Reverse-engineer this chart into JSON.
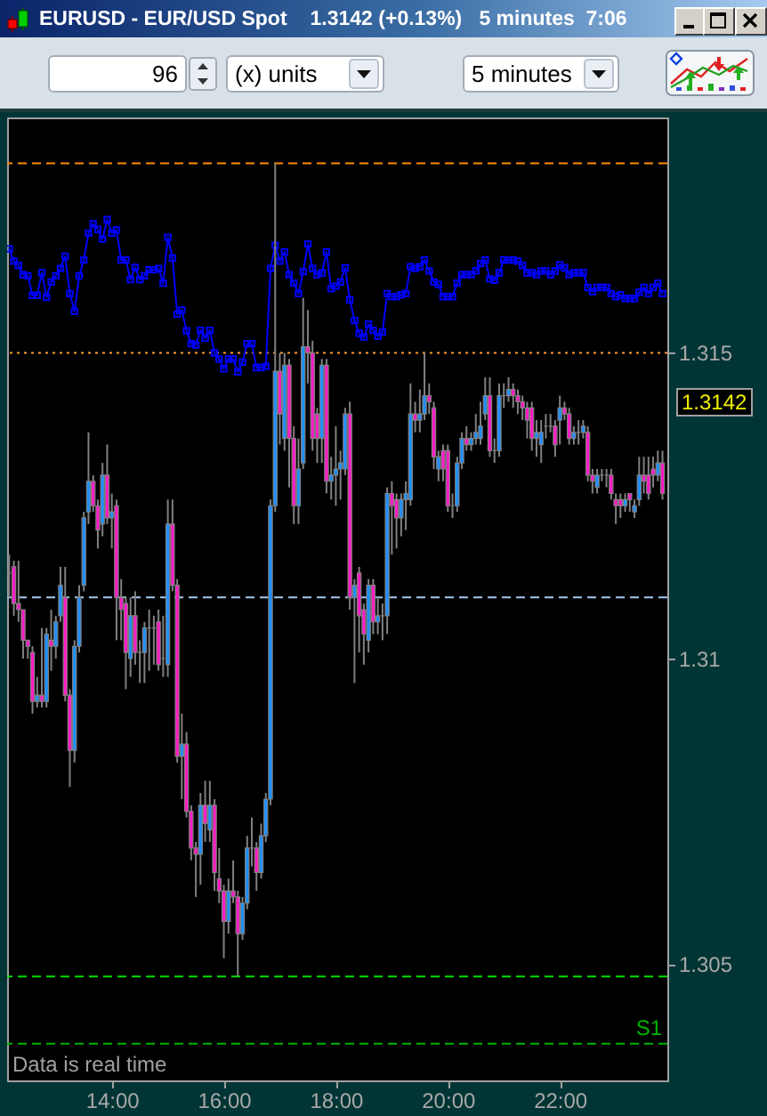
{
  "chart_data": {
    "type": "candlestick",
    "title": "EURUSD - EUR/USD Spot",
    "subtitle": "1.3142 (+0.13%)   5 minutes  7:06",
    "xlim": [
      12.13,
      23.92
    ],
    "xticks": [
      {
        "value": 14,
        "label": "14:00"
      },
      {
        "value": 16,
        "label": "16:00"
      },
      {
        "value": 18,
        "label": "18:00"
      },
      {
        "value": 20,
        "label": "20:00"
      },
      {
        "value": 22,
        "label": "22:00"
      }
    ],
    "ylim": [
      1.3031,
      1.31885
    ],
    "yticks": [
      1.305,
      1.31,
      1.315
    ],
    "x": [
      12.1667,
      12.25,
      12.3333,
      12.4167,
      12.5,
      12.5833,
      12.6667,
      12.75,
      12.8333,
      12.9167,
      13,
      13.0833,
      13.1667,
      13.25,
      13.3333,
      13.4167,
      13.5,
      13.5833,
      13.6667,
      13.75,
      13.8333,
      13.9167,
      14,
      14.0833,
      14.1667,
      14.25,
      14.3333,
      14.4167,
      14.5,
      14.5833,
      14.6667,
      14.75,
      14.8333,
      14.9167,
      15,
      15.0833,
      15.1667,
      15.25,
      15.3333,
      15.4167,
      15.5,
      15.5833,
      15.6667,
      15.75,
      15.8333,
      15.9167,
      16,
      16.0833,
      16.1667,
      16.25,
      16.3333,
      16.4167,
      16.5,
      16.5833,
      16.6667,
      16.75,
      16.8333,
      16.9167,
      17,
      17.0833,
      17.1667,
      17.25,
      17.3333,
      17.4167,
      17.5,
      17.5833,
      17.6667,
      17.75,
      17.8333,
      17.9167,
      18,
      18.0833,
      18.1667,
      18.25,
      18.3333,
      18.4167,
      18.5,
      18.5833,
      18.6667,
      18.75,
      18.8333,
      18.9167,
      19,
      19.0833,
      19.1667,
      19.25,
      19.3333,
      19.4167,
      19.5,
      19.5833,
      19.6667,
      19.75,
      19.8333,
      19.9167,
      20,
      20.0833,
      20.1667,
      20.25,
      20.3333,
      20.4167,
      20.5,
      20.5833,
      20.6667,
      20.75,
      20.8333,
      20.9167,
      21,
      21.0833,
      21.1667,
      21.25,
      21.3333,
      21.4167,
      21.5,
      21.5833,
      21.6667,
      21.75,
      21.8333,
      21.9167,
      22,
      22.0833,
      22.1667,
      22.25,
      22.3333,
      22.4167,
      22.5,
      22.5833,
      22.6667,
      22.75,
      22.8333,
      22.9167,
      23,
      23.0833,
      23.1667,
      23.25,
      23.3333,
      23.4167,
      23.5,
      23.5833,
      23.6667,
      23.75,
      23.8333
    ],
    "ohlc": [
      [
        1.3114,
        1.3117,
        1.311,
        1.3114
      ],
      [
        1.3115,
        1.3116,
        1.3107,
        1.3109
      ],
      [
        1.3109,
        1.3116,
        1.3106,
        1.3108
      ],
      [
        1.3108,
        1.3108,
        1.31,
        1.3103
      ],
      [
        1.3103,
        1.3103,
        1.31,
        1.3102
      ],
      [
        1.3101,
        1.3102,
        1.3091,
        1.3093
      ],
      [
        1.3093,
        1.3097,
        1.3092,
        1.3094
      ],
      [
        1.3094,
        1.3105,
        1.3092,
        1.3093
      ],
      [
        1.3093,
        1.3105,
        1.3092,
        1.3104
      ],
      [
        1.3103,
        1.3108,
        1.3098,
        1.3102
      ],
      [
        1.3102,
        1.3107,
        1.31,
        1.3106
      ],
      [
        1.3107,
        1.3115,
        1.3106,
        1.3112
      ],
      [
        1.311,
        1.3115,
        1.3093,
        1.3094
      ],
      [
        1.3094,
        1.3095,
        1.3079,
        1.3085
      ],
      [
        1.3085,
        1.3103,
        1.3083,
        1.3102
      ],
      [
        1.3102,
        1.3112,
        1.3101,
        1.311
      ],
      [
        1.3112,
        1.3124,
        1.3111,
        1.3123
      ],
      [
        1.3124,
        1.3137,
        1.3122,
        1.3129
      ],
      [
        1.3129,
        1.313,
        1.3124,
        1.3125
      ],
      [
        1.3125,
        1.3126,
        1.3118,
        1.3121
      ],
      [
        1.3122,
        1.3132,
        1.312,
        1.313
      ],
      [
        1.313,
        1.3135,
        1.3122,
        1.3123
      ],
      [
        1.3123,
        1.3127,
        1.3118,
        1.3124
      ],
      [
        1.3125,
        1.3126,
        1.3103,
        1.311
      ],
      [
        1.311,
        1.3113,
        1.3103,
        1.3108
      ],
      [
        1.3109,
        1.311,
        1.3095,
        1.3101
      ],
      [
        1.31,
        1.311,
        1.3097,
        1.3107
      ],
      [
        1.3107,
        1.3111,
        1.3099,
        1.3101
      ],
      [
        1.3101,
        1.3103,
        1.3096,
        1.3101
      ],
      [
        1.3101,
        1.3106,
        1.3096,
        1.3105
      ],
      [
        1.3105,
        1.3108,
        1.3098,
        1.3105
      ],
      [
        1.3105,
        1.3107,
        1.3099,
        1.3105
      ],
      [
        1.3106,
        1.3108,
        1.3098,
        1.3099
      ],
      [
        1.31,
        1.3107,
        1.3097,
        1.31
      ],
      [
        1.3099,
        1.3126,
        1.3097,
        1.3122
      ],
      [
        1.3122,
        1.3126,
        1.3111,
        1.3112
      ],
      [
        1.3112,
        1.3113,
        1.3083,
        1.3084
      ],
      [
        1.3084,
        1.3091,
        1.3077,
        1.3086
      ],
      [
        1.3086,
        1.3088,
        1.3074,
        1.3075
      ],
      [
        1.3075,
        1.3076,
        1.3067,
        1.3069
      ],
      [
        1.3069,
        1.307,
        1.3061,
        1.3068
      ],
      [
        1.3068,
        1.3078,
        1.3063,
        1.3076
      ],
      [
        1.3076,
        1.308,
        1.307,
        1.3073
      ],
      [
        1.3072,
        1.308,
        1.307,
        1.3076
      ],
      [
        1.3076,
        1.3077,
        1.3062,
        1.3065
      ],
      [
        1.3064,
        1.3069,
        1.306,
        1.3062
      ],
      [
        1.3062,
        1.3063,
        1.3051,
        1.3057
      ],
      [
        1.3057,
        1.3064,
        1.3055,
        1.3062
      ],
      [
        1.3062,
        1.3067,
        1.306,
        1.3061
      ],
      [
        1.3061,
        1.3062,
        1.3048,
        1.3055
      ],
      [
        1.3055,
        1.3061,
        1.3054,
        1.306
      ],
      [
        1.306,
        1.3071,
        1.3059,
        1.3069
      ],
      [
        1.3069,
        1.3074,
        1.3066,
        1.3069
      ],
      [
        1.3069,
        1.307,
        1.3062,
        1.3065
      ],
      [
        1.3065,
        1.3073,
        1.3064,
        1.3071
      ],
      [
        1.3071,
        1.3078,
        1.307,
        1.3077
      ],
      [
        1.3077,
        1.3126,
        1.3076,
        1.3125
      ],
      [
        1.3125,
        1.3181,
        1.3124,
        1.3147
      ],
      [
        1.3147,
        1.315,
        1.3135,
        1.314
      ],
      [
        1.3136,
        1.315,
        1.3134,
        1.3148
      ],
      [
        1.3148,
        1.3149,
        1.3128,
        1.3136
      ],
      [
        1.3136,
        1.3138,
        1.3122,
        1.3125
      ],
      [
        1.3125,
        1.3136,
        1.3122,
        1.3131
      ],
      [
        1.3132,
        1.3159,
        1.3131,
        1.3151
      ],
      [
        1.3151,
        1.3157,
        1.3145,
        1.315
      ],
      [
        1.315,
        1.3152,
        1.3134,
        1.3136
      ],
      [
        1.314,
        1.3141,
        1.3132,
        1.3136
      ],
      [
        1.3136,
        1.3149,
        1.3132,
        1.3148
      ],
      [
        1.3148,
        1.3149,
        1.3127,
        1.3129
      ],
      [
        1.3129,
        1.3133,
        1.3126,
        1.313
      ],
      [
        1.313,
        1.3138,
        1.3125,
        1.3131
      ],
      [
        1.3131,
        1.3134,
        1.3126,
        1.3132
      ],
      [
        1.3131,
        1.3141,
        1.313,
        1.314
      ],
      [
        1.314,
        1.3142,
        1.3108,
        1.311
      ],
      [
        1.311,
        1.3113,
        1.3096,
        1.3112
      ],
      [
        1.3114,
        1.3115,
        1.3101,
        1.3107
      ],
      [
        1.3108,
        1.3109,
        1.3099,
        1.3104
      ],
      [
        1.3103,
        1.3113,
        1.3101,
        1.3112
      ],
      [
        1.3112,
        1.3113,
        1.3104,
        1.3106
      ],
      [
        1.3106,
        1.311,
        1.3104,
        1.3107
      ],
      [
        1.3107,
        1.3109,
        1.3103,
        1.3107
      ],
      [
        1.3107,
        1.3128,
        1.3104,
        1.3127
      ],
      [
        1.3127,
        1.3129,
        1.3117,
        1.3125
      ],
      [
        1.3126,
        1.3127,
        1.3118,
        1.3123
      ],
      [
        1.3123,
        1.3127,
        1.312,
        1.3126
      ],
      [
        1.3126,
        1.3129,
        1.3121,
        1.3127
      ],
      [
        1.3126,
        1.3145,
        1.3125,
        1.314
      ],
      [
        1.314,
        1.3142,
        1.3137,
        1.3139
      ],
      [
        1.3139,
        1.3144,
        1.3137,
        1.314
      ],
      [
        1.314,
        1.315,
        1.3139,
        1.3143
      ],
      [
        1.3143,
        1.3145,
        1.314,
        1.3142
      ],
      [
        1.3141,
        1.3142,
        1.3131,
        1.3133
      ],
      [
        1.3131,
        1.3134,
        1.3129,
        1.3133
      ],
      [
        1.3134,
        1.3135,
        1.3129,
        1.3131
      ],
      [
        1.3134,
        1.3135,
        1.3124,
        1.3125
      ],
      [
        1.3125,
        1.3127,
        1.3123,
        1.3125
      ],
      [
        1.3125,
        1.3133,
        1.3124,
        1.3132
      ],
      [
        1.3132,
        1.3137,
        1.3131,
        1.3136
      ],
      [
        1.3136,
        1.3138,
        1.3134,
        1.3135
      ],
      [
        1.3135,
        1.3137,
        1.3134,
        1.3136
      ],
      [
        1.3136,
        1.314,
        1.3135,
        1.3137
      ],
      [
        1.3136,
        1.3142,
        1.3135,
        1.3138
      ],
      [
        1.314,
        1.3146,
        1.3139,
        1.3143
      ],
      [
        1.3143,
        1.3146,
        1.3133,
        1.3134
      ],
      [
        1.3134,
        1.3136,
        1.3132,
        1.3134
      ],
      [
        1.3134,
        1.3145,
        1.3133,
        1.3143
      ],
      [
        1.3143,
        1.3145,
        1.3141,
        1.3143
      ],
      [
        1.3143,
        1.3146,
        1.3142,
        1.3144
      ],
      [
        1.3144,
        1.3145,
        1.3141,
        1.3143
      ],
      [
        1.3143,
        1.3144,
        1.314,
        1.3142
      ],
      [
        1.3142,
        1.3143,
        1.3139,
        1.3141
      ],
      [
        1.3141,
        1.3142,
        1.3136,
        1.3139
      ],
      [
        1.3141,
        1.3142,
        1.3134,
        1.3136
      ],
      [
        1.3136,
        1.3139,
        1.3133,
        1.3137
      ],
      [
        1.3135,
        1.3139,
        1.3132,
        1.3137
      ],
      [
        1.3138,
        1.314,
        1.3136,
        1.3138
      ],
      [
        1.3138,
        1.314,
        1.3137,
        1.3138
      ],
      [
        1.3138,
        1.3139,
        1.3133,
        1.3135
      ],
      [
        1.3139,
        1.3143,
        1.3135,
        1.3141
      ],
      [
        1.3141,
        1.3142,
        1.3139,
        1.314
      ],
      [
        1.314,
        1.3141,
        1.3135,
        1.3136
      ],
      [
        1.3136,
        1.3138,
        1.3135,
        1.3137
      ],
      [
        1.3137,
        1.3139,
        1.3135,
        1.3137
      ],
      [
        1.3137,
        1.3139,
        1.3136,
        1.3138
      ],
      [
        1.3137,
        1.3138,
        1.3129,
        1.313
      ],
      [
        1.313,
        1.3131,
        1.3127,
        1.3129
      ],
      [
        1.3128,
        1.3131,
        1.3127,
        1.313
      ],
      [
        1.313,
        1.3131,
        1.3129,
        1.313
      ],
      [
        1.313,
        1.3131,
        1.3128,
        1.313
      ],
      [
        1.313,
        1.3131,
        1.3126,
        1.3127
      ],
      [
        1.3126,
        1.3127,
        1.3122,
        1.3125
      ],
      [
        1.3126,
        1.3127,
        1.3123,
        1.3125
      ],
      [
        1.3125,
        1.3127,
        1.3124,
        1.3126
      ],
      [
        1.3127,
        1.3127,
        1.3124,
        1.3126
      ],
      [
        1.3124,
        1.3126,
        1.3123,
        1.3125
      ],
      [
        1.3126,
        1.3133,
        1.3125,
        1.313
      ],
      [
        1.313,
        1.3133,
        1.3127,
        1.3129
      ],
      [
        1.313,
        1.3133,
        1.3126,
        1.3127
      ],
      [
        1.3131,
        1.3133,
        1.3128,
        1.313
      ],
      [
        1.313,
        1.3134,
        1.3129,
        1.3132
      ],
      [
        1.3132,
        1.3134,
        1.3126,
        1.3127
      ]
    ],
    "color": "#808080",
    "colors": [
      "#808080",
      "#ff1ac6",
      "#ff1ac6",
      "#ff1ac6",
      "#ff1ac6",
      "#ff1ac6",
      "#1e90ff",
      "#ff1ac6",
      "#1e90ff",
      "#ff1ac6",
      "#1e90ff",
      "#1e90ff",
      "#ff1ac6",
      "#ff1ac6",
      "#1e90ff",
      "#1e90ff",
      "#1e90ff",
      "#1e90ff",
      "#ff1ac6",
      "#ff1ac6",
      "#1e90ff",
      "#ff1ac6",
      "#1e90ff",
      "#ff1ac6",
      "#ff1ac6",
      "#ff1ac6",
      "#1e90ff",
      "#ff1ac6",
      "#808080",
      "#1e90ff",
      "#808080",
      "#808080",
      "#ff1ac6",
      "#808080",
      "#1e90ff",
      "#ff1ac6",
      "#ff1ac6",
      "#1e90ff",
      "#ff1ac6",
      "#ff1ac6",
      "#ff1ac6",
      "#1e90ff",
      "#ff1ac6",
      "#1e90ff",
      "#ff1ac6",
      "#ff1ac6",
      "#ff1ac6",
      "#1e90ff",
      "#ff1ac6",
      "#ff1ac6",
      "#1e90ff",
      "#1e90ff",
      "#808080",
      "#ff1ac6",
      "#1e90ff",
      "#1e90ff",
      "#1e90ff",
      "#1e90ff",
      "#ff1ac6",
      "#1e90ff",
      "#ff1ac6",
      "#ff1ac6",
      "#1e90ff",
      "#1e90ff",
      "#ff1ac6",
      "#ff1ac6",
      "#ff1ac6",
      "#1e90ff",
      "#ff1ac6",
      "#1e90ff",
      "#1e90ff",
      "#1e90ff",
      "#1e90ff",
      "#ff1ac6",
      "#1e90ff",
      "#ff1ac6",
      "#ff1ac6",
      "#1e90ff",
      "#ff1ac6",
      "#1e90ff",
      "#808080",
      "#1e90ff",
      "#ff1ac6",
      "#ff1ac6",
      "#1e90ff",
      "#1e90ff",
      "#1e90ff",
      "#ff1ac6",
      "#1e90ff",
      "#1e90ff",
      "#ff1ac6",
      "#ff1ac6",
      "#1e90ff",
      "#ff1ac6",
      "#ff1ac6",
      "#808080",
      "#1e90ff",
      "#1e90ff",
      "#ff1ac6",
      "#1e90ff",
      "#1e90ff",
      "#1e90ff",
      "#1e90ff",
      "#ff1ac6",
      "#808080",
      "#1e90ff",
      "#808080",
      "#1e90ff",
      "#ff1ac6",
      "#ff1ac6",
      "#ff1ac6",
      "#ff1ac6",
      "#ff1ac6",
      "#1e90ff",
      "#1e90ff",
      "#808080",
      "#808080",
      "#ff1ac6",
      "#1e90ff",
      "#ff1ac6",
      "#ff1ac6",
      "#1e90ff",
      "#808080",
      "#1e90ff",
      "#ff1ac6",
      "#ff1ac6",
      "#1e90ff",
      "#808080",
      "#808080",
      "#ff1ac6",
      "#ff1ac6",
      "#ff1ac6",
      "#1e90ff",
      "#ff1ac6",
      "#1e90ff",
      "#1e90ff",
      "#ff1ac6",
      "#ff1ac6",
      "#ff1ac6",
      "#1e90ff",
      "#ff1ac6"
    ],
    "series": [
      {
        "type": "line",
        "color": "#0000ff",
        "marker": "square",
        "values": [
          1.3167,
          1.3165,
          1.31643,
          1.31628,
          1.31626,
          1.31594,
          1.31594,
          1.31631,
          1.31591,
          1.31616,
          1.31626,
          1.31638,
          1.31658,
          1.31597,
          1.31568,
          1.31626,
          1.31652,
          1.31696,
          1.31711,
          1.31702,
          1.31686,
          1.31718,
          1.31696,
          1.31701,
          1.31652,
          1.31652,
          1.3162,
          1.3164,
          1.3162,
          1.31626,
          1.31636,
          1.31636,
          1.31638,
          1.31614,
          1.31689,
          1.31655,
          1.31563,
          1.3157,
          1.31536,
          1.31515,
          1.31513,
          1.31537,
          1.31524,
          1.31537,
          1.315,
          1.3149,
          1.31474,
          1.3149,
          1.3149,
          1.31469,
          1.31485,
          1.31515,
          1.31515,
          1.31476,
          1.31476,
          1.31478,
          1.31638,
          1.31676,
          1.3165,
          1.31665,
          1.31628,
          1.31614,
          1.31597,
          1.31633,
          1.31678,
          1.31638,
          1.31628,
          1.31631,
          1.31665,
          1.31605,
          1.31609,
          1.31616,
          1.31639,
          1.31587,
          1.31553,
          1.31532,
          1.31526,
          1.31547,
          1.31537,
          1.31527,
          1.31534,
          1.31597,
          1.31592,
          1.31592,
          1.31595,
          1.31597,
          1.31641,
          1.31638,
          1.31641,
          1.31652,
          1.31634,
          1.31616,
          1.31612,
          1.31592,
          1.31592,
          1.31592,
          1.31614,
          1.31628,
          1.31628,
          1.31628,
          1.31634,
          1.31646,
          1.31652,
          1.31621,
          1.31619,
          1.31631,
          1.31652,
          1.31652,
          1.31652,
          1.3165,
          1.31643,
          1.31631,
          1.31631,
          1.31628,
          1.31634,
          1.31634,
          1.31628,
          1.31634,
          1.31644,
          1.31639,
          1.31628,
          1.31631,
          1.31631,
          1.31631,
          1.31607,
          1.316,
          1.31607,
          1.31607,
          1.31607,
          1.31597,
          1.31592,
          1.31595,
          1.31589,
          1.31589,
          1.31589,
          1.31599,
          1.31607,
          1.31597,
          1.31607,
          1.31614,
          1.31597
        ]
      }
    ],
    "ref_lines": [
      {
        "axis": "y",
        "value": 1.3181,
        "color": "#ff8c00",
        "line_style": "dashed"
      },
      {
        "axis": "y",
        "value": 1.315,
        "color": "#ff9933",
        "line_style": "dotted"
      },
      {
        "axis": "y",
        "value": 1.311,
        "color": "#a6caf0",
        "line_style": "dashed"
      },
      {
        "axis": "y",
        "value": 1.3048,
        "color": "#00e000",
        "line_style": "dashed"
      },
      {
        "axis": "y",
        "value": 1.3037,
        "label": "S1",
        "color": "#00b400",
        "line_style": "dashed"
      }
    ],
    "annotations": [
      "Data is real time",
      "1.3142",
      "96",
      "(x) units",
      "5 minutes"
    ]
  }
}
